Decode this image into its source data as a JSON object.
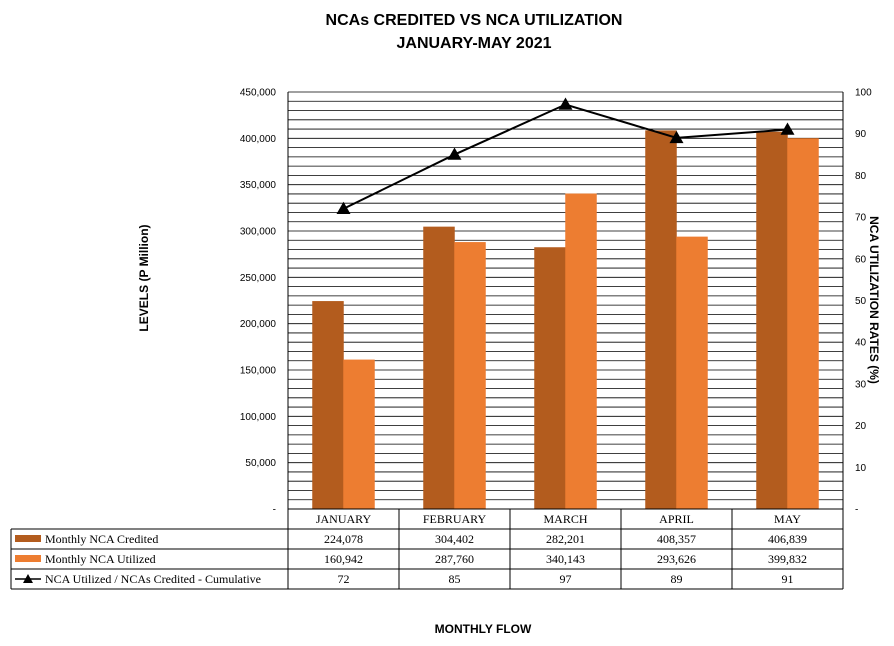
{
  "chart_data": {
    "type": "bar",
    "title": "NCAs CREDITED VS NCA UTILIZATION",
    "subtitle": "JANUARY-MAY 2021",
    "xlabel": "MONTHLY FLOW",
    "ylabel": "LEVELS (P Million)",
    "y2label": "NCA UTILIZATION RATES (%)",
    "categories": [
      "JANUARY",
      "FEBRUARY",
      "MARCH",
      "APRIL",
      "MAY"
    ],
    "ylim": [
      0,
      450000
    ],
    "y2lim": [
      0,
      100
    ],
    "yticks": [
      "-",
      "50,000",
      "100,000",
      "150,000",
      "200,000",
      "250,000",
      "300,000",
      "350,000",
      "400,000",
      "450,000"
    ],
    "y2ticks": [
      "-",
      "10",
      "20",
      "30",
      "40",
      "50",
      "60",
      "70",
      "80",
      "90",
      "100"
    ],
    "grid": true,
    "legend": "data-table",
    "series": [
      {
        "name": "Monthly NCA Credited",
        "kind": "bar",
        "axis": "left",
        "color": "#B35C1E",
        "values": [
          224078,
          304402,
          282201,
          408357,
          406839
        ],
        "labels": [
          "224,078",
          "304,402",
          "282,201",
          "408,357",
          "406,839"
        ]
      },
      {
        "name": "Monthly NCA Utilized",
        "kind": "bar",
        "axis": "left",
        "color": "#ED7D31",
        "values": [
          160942,
          287760,
          340143,
          293626,
          399832
        ],
        "labels": [
          "160,942",
          "287,760",
          "340,143",
          "293,626",
          "399,832"
        ]
      },
      {
        "name": "NCA Utilized / NCAs Credited - Cumulative",
        "kind": "line",
        "axis": "right",
        "color": "#000000",
        "values": [
          72,
          85,
          97,
          89,
          91
        ],
        "labels": [
          "72",
          "85",
          "97",
          "89",
          "91"
        ]
      }
    ]
  }
}
